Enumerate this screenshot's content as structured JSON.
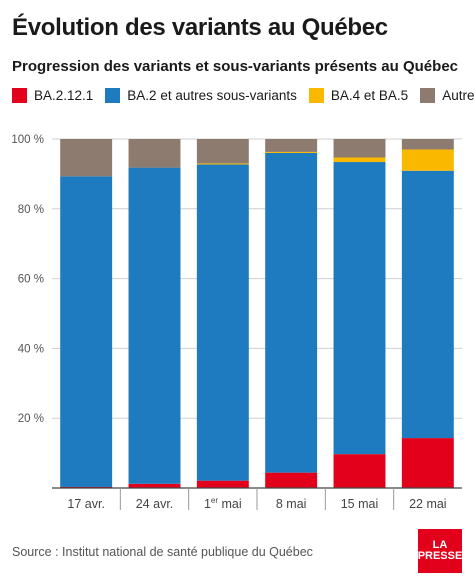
{
  "title": "Évolution des variants au Québec",
  "subtitle": "Progression des variants et sous-variants présents au Québec",
  "source": "Source : Institut national de santé publique du Québec",
  "logo": {
    "line1": "LA",
    "line2": "PRESSE"
  },
  "legend": [
    {
      "label": "BA.2.12.1",
      "color": "#e2001a"
    },
    {
      "label": "BA.2 et autres sous-variants",
      "color": "#1f7bbf"
    },
    {
      "label": "BA.4 et BA.5",
      "color": "#fbb800"
    },
    {
      "label": "Autres",
      "color": "#8c7b6e"
    }
  ],
  "chart_data": {
    "type": "bar",
    "stacked": true,
    "categories": [
      "17 avr.",
      "24 avr.",
      "1er mai",
      "8 mai",
      "15 mai",
      "22 mai"
    ],
    "series": [
      {
        "name": "BA.2.12.1",
        "color": "#e2001a",
        "values": [
          0.3,
          1.2,
          2.1,
          4.4,
          9.7,
          14.3
        ]
      },
      {
        "name": "BA.2 et autres sous-variants",
        "color": "#1f7bbf",
        "values": [
          89.0,
          90.6,
          90.6,
          91.6,
          83.7,
          76.6
        ]
      },
      {
        "name": "BA.4 et BA.5",
        "color": "#fbb800",
        "values": [
          0.0,
          0.0,
          0.3,
          0.3,
          1.3,
          6.1
        ]
      },
      {
        "name": "Autres",
        "color": "#8c7b6e",
        "values": [
          10.7,
          8.2,
          7.0,
          3.7,
          5.3,
          3.0
        ]
      }
    ],
    "ylim": [
      0,
      100
    ],
    "yticks": [
      0,
      20,
      40,
      60,
      80,
      100
    ],
    "ytick_labels": [
      "",
      "20 %",
      "40 %",
      "60 %",
      "80 %",
      "100 %"
    ],
    "grid": true,
    "legend_position": "top-left"
  }
}
